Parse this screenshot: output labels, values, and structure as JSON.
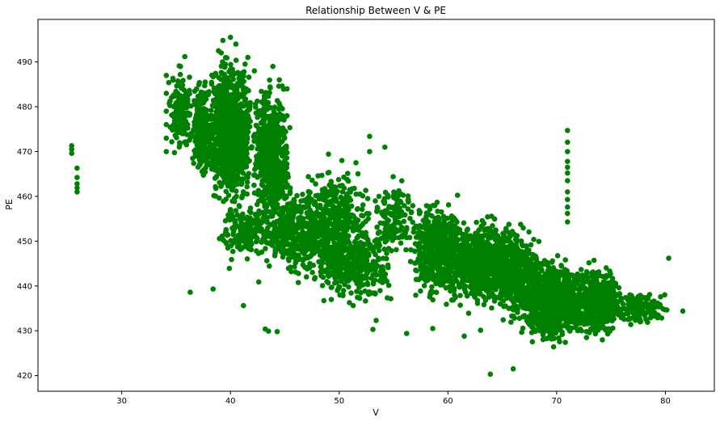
{
  "chart_data": {
    "type": "scatter",
    "title": "Relationship Between V & PE",
    "xlabel": "V",
    "ylabel": "PE",
    "xlim": [
      22.3,
      84.5
    ],
    "ylim": [
      416.5,
      499.5
    ],
    "xticks": [
      30,
      40,
      50,
      60,
      70,
      80
    ],
    "yticks": [
      420,
      430,
      440,
      450,
      460,
      470,
      480,
      490
    ],
    "grid": false,
    "marker_color": "#008000",
    "series": [
      {
        "points": [
          [
            25.4,
            471.3
          ],
          [
            25.4,
            470.5
          ],
          [
            25.4,
            469.6
          ],
          [
            25.9,
            466.3
          ],
          [
            25.9,
            464.2
          ],
          [
            25.9,
            462.8
          ],
          [
            25.9,
            461.9
          ],
          [
            25.9,
            461.0
          ],
          [
            36.3,
            438.6
          ],
          [
            38.4,
            439.3
          ],
          [
            39.9,
            443.9
          ],
          [
            40.1,
            445.9
          ],
          [
            41.2,
            435.6
          ],
          [
            42.6,
            440.9
          ],
          [
            43.2,
            430.4
          ],
          [
            43.5,
            429.9
          ],
          [
            44.3,
            429.8
          ],
          [
            53.1,
            430.3
          ],
          [
            53.4,
            432.3
          ],
          [
            56.2,
            429.4
          ],
          [
            58.6,
            430.5
          ],
          [
            61.5,
            428.8
          ],
          [
            63.0,
            430.1
          ],
          [
            63.9,
            420.3
          ],
          [
            66.0,
            421.5
          ],
          [
            71.0,
            474.7
          ],
          [
            71.0,
            472.1
          ],
          [
            71.0,
            470.0
          ],
          [
            71.0,
            467.8
          ],
          [
            71.0,
            466.5
          ],
          [
            71.0,
            465.2
          ],
          [
            71.0,
            463.5
          ],
          [
            71.0,
            461.0
          ],
          [
            71.0,
            459.3
          ],
          [
            71.0,
            457.6
          ],
          [
            71.0,
            456.2
          ],
          [
            71.0,
            454.3
          ],
          [
            80.3,
            446.2
          ],
          [
            81.6,
            434.4
          ],
          [
            34.1,
            487.0
          ],
          [
            34.1,
            483.0
          ],
          [
            34.1,
            479.0
          ],
          [
            34.1,
            476.0
          ],
          [
            34.1,
            473.0
          ],
          [
            34.1,
            470.0
          ],
          [
            35.4,
            489.0
          ],
          [
            35.8,
            491.2
          ],
          [
            38.9,
            492.5
          ],
          [
            39.3,
            494.8
          ],
          [
            40.0,
            495.5
          ],
          [
            40.5,
            494.0
          ],
          [
            41.6,
            491.0
          ],
          [
            42.2,
            488.0
          ],
          [
            43.9,
            489.0
          ],
          [
            44.5,
            486.0
          ],
          [
            45.2,
            484.0
          ],
          [
            45.2,
            478.0
          ],
          [
            52.8,
            473.4
          ],
          [
            52.8,
            470.0
          ],
          [
            54.2,
            471.0
          ]
        ],
        "clusters": [
          {
            "x": [
              34.2,
              36.5
            ],
            "y": [
              468,
              490
            ],
            "n": 160
          },
          {
            "x": [
              36.5,
              38.5
            ],
            "y": [
              462,
              488
            ],
            "n": 260
          },
          {
            "x": [
              38.0,
              42.0
            ],
            "y": [
              455,
              494
            ],
            "n": 1100
          },
          {
            "x": [
              42.0,
              45.5
            ],
            "y": [
              450,
              488
            ],
            "n": 550
          },
          {
            "x": [
              38.5,
              44.5
            ],
            "y": [
              445,
              460
            ],
            "n": 180
          },
          {
            "x": [
              43.0,
              48.0
            ],
            "y": [
              440,
              465
            ],
            "n": 300
          },
          {
            "x": [
              45.5,
              53.0
            ],
            "y": [
              437,
              470
            ],
            "n": 520
          },
          {
            "x": [
              48.0,
              55.0
            ],
            "y": [
              434,
              455
            ],
            "n": 300
          },
          {
            "x": [
              53.0,
              57.0
            ],
            "y": [
              445,
              466
            ],
            "n": 140
          },
          {
            "x": [
              56.5,
              62.0
            ],
            "y": [
              434,
              461
            ],
            "n": 500
          },
          {
            "x": [
              60.0,
              66.5
            ],
            "y": [
              433,
              457
            ],
            "n": 700
          },
          {
            "x": [
              64.0,
              68.5
            ],
            "y": [
              430,
              456
            ],
            "n": 380
          },
          {
            "x": [
              66.5,
              72.5
            ],
            "y": [
              425.5,
              448
            ],
            "n": 900
          },
          {
            "x": [
              71.5,
              76.0
            ],
            "y": [
              426,
              447
            ],
            "n": 450
          },
          {
            "x": [
              75.0,
              80.3
            ],
            "y": [
              430.5,
              440
            ],
            "n": 160
          }
        ]
      }
    ]
  }
}
